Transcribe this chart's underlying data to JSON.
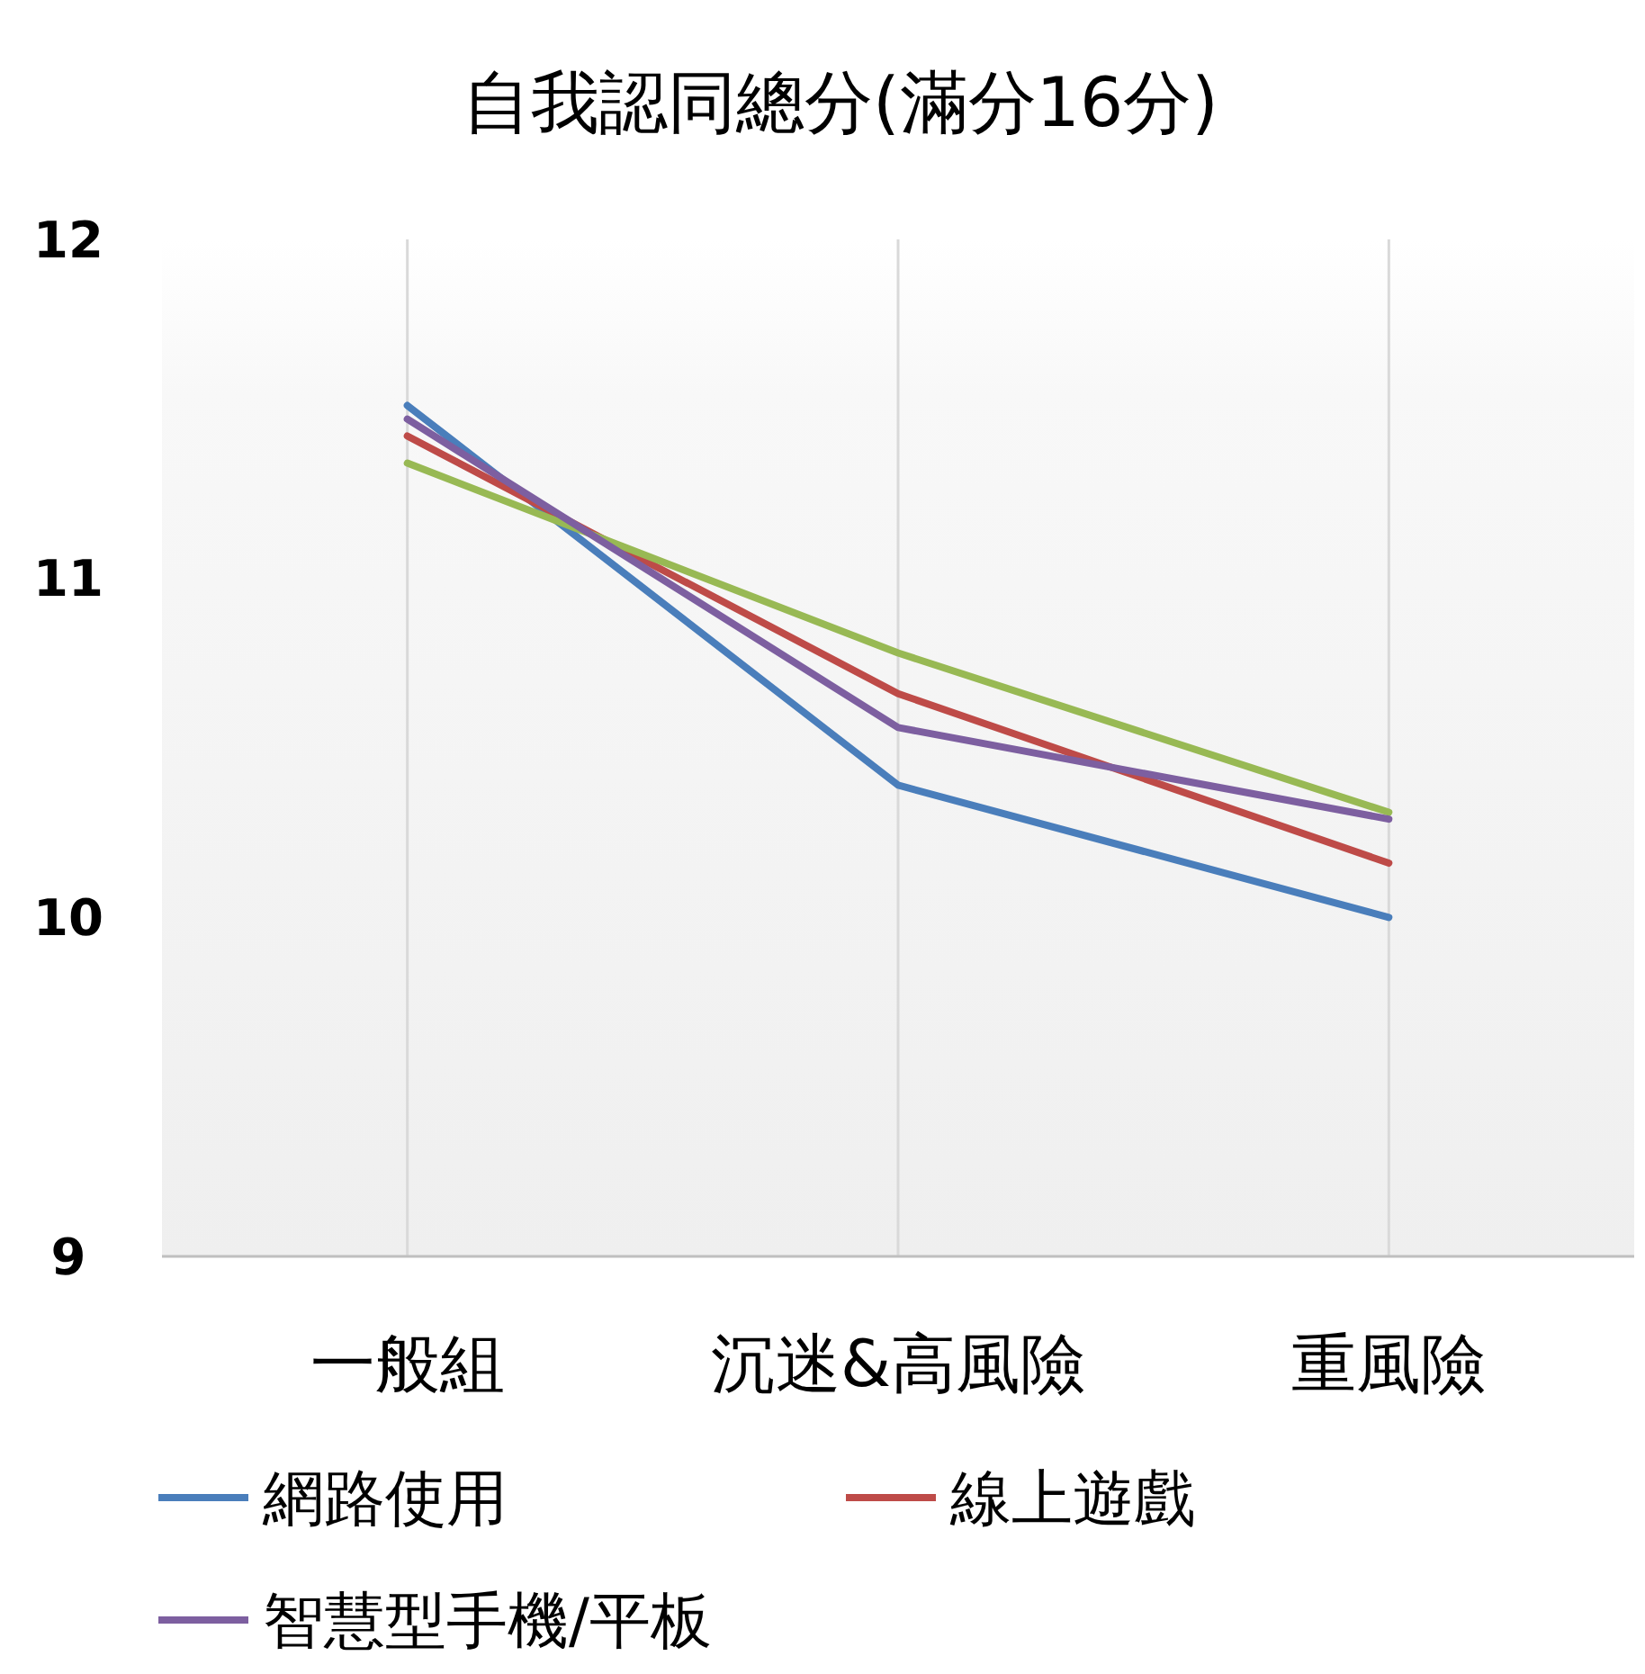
{
  "chart_data": {
    "type": "line",
    "title": "自我認同總分(滿分16分)",
    "categories": [
      "一般組",
      "沉迷&高風險",
      "重風險"
    ],
    "series": [
      {
        "name": "網路使用",
        "color": "#4a7ebb",
        "values": [
          11.51,
          10.39,
          10.0
        ]
      },
      {
        "name": "線上遊戲",
        "color": "#be4b48",
        "values": [
          11.42,
          10.66,
          10.16
        ]
      },
      {
        "color": "#98b954",
        "values": [
          11.34,
          10.78,
          10.31
        ]
      },
      {
        "name": "智慧型手機/平板",
        "color": "#7d5fa0",
        "values": [
          11.47,
          10.56,
          10.29
        ]
      }
    ],
    "ylim": [
      9,
      12
    ],
    "yticks": [
      9,
      10,
      11,
      12
    ],
    "grid": "x",
    "legend": "bottom",
    "marker": "none",
    "line_style": "solid"
  }
}
